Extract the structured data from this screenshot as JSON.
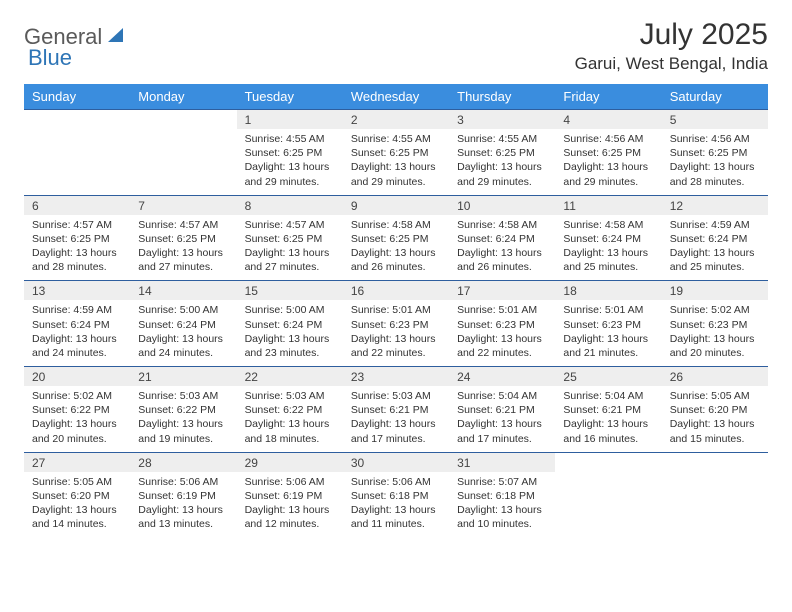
{
  "logo": {
    "text1": "General",
    "text2": "Blue",
    "color1": "#5a5a5a",
    "color2": "#2e75b6"
  },
  "title": "July 2025",
  "location": "Garui, West Bengal, India",
  "colors": {
    "header_bg": "#3a8dde",
    "header_text": "#ffffff",
    "daynum_bg": "#eeeeee",
    "row_border": "#2e5e9e",
    "page_bg": "#ffffff",
    "text": "#333333"
  },
  "columns": [
    "Sunday",
    "Monday",
    "Tuesday",
    "Wednesday",
    "Thursday",
    "Friday",
    "Saturday"
  ],
  "weeks": [
    {
      "days": [
        null,
        null,
        {
          "n": "1",
          "sunrise": "4:55 AM",
          "sunset": "6:25 PM",
          "daylight": "13 hours and 29 minutes."
        },
        {
          "n": "2",
          "sunrise": "4:55 AM",
          "sunset": "6:25 PM",
          "daylight": "13 hours and 29 minutes."
        },
        {
          "n": "3",
          "sunrise": "4:55 AM",
          "sunset": "6:25 PM",
          "daylight": "13 hours and 29 minutes."
        },
        {
          "n": "4",
          "sunrise": "4:56 AM",
          "sunset": "6:25 PM",
          "daylight": "13 hours and 29 minutes."
        },
        {
          "n": "5",
          "sunrise": "4:56 AM",
          "sunset": "6:25 PM",
          "daylight": "13 hours and 28 minutes."
        }
      ]
    },
    {
      "days": [
        {
          "n": "6",
          "sunrise": "4:57 AM",
          "sunset": "6:25 PM",
          "daylight": "13 hours and 28 minutes."
        },
        {
          "n": "7",
          "sunrise": "4:57 AM",
          "sunset": "6:25 PM",
          "daylight": "13 hours and 27 minutes."
        },
        {
          "n": "8",
          "sunrise": "4:57 AM",
          "sunset": "6:25 PM",
          "daylight": "13 hours and 27 minutes."
        },
        {
          "n": "9",
          "sunrise": "4:58 AM",
          "sunset": "6:25 PM",
          "daylight": "13 hours and 26 minutes."
        },
        {
          "n": "10",
          "sunrise": "4:58 AM",
          "sunset": "6:24 PM",
          "daylight": "13 hours and 26 minutes."
        },
        {
          "n": "11",
          "sunrise": "4:58 AM",
          "sunset": "6:24 PM",
          "daylight": "13 hours and 25 minutes."
        },
        {
          "n": "12",
          "sunrise": "4:59 AM",
          "sunset": "6:24 PM",
          "daylight": "13 hours and 25 minutes."
        }
      ]
    },
    {
      "days": [
        {
          "n": "13",
          "sunrise": "4:59 AM",
          "sunset": "6:24 PM",
          "daylight": "13 hours and 24 minutes."
        },
        {
          "n": "14",
          "sunrise": "5:00 AM",
          "sunset": "6:24 PM",
          "daylight": "13 hours and 24 minutes."
        },
        {
          "n": "15",
          "sunrise": "5:00 AM",
          "sunset": "6:24 PM",
          "daylight": "13 hours and 23 minutes."
        },
        {
          "n": "16",
          "sunrise": "5:01 AM",
          "sunset": "6:23 PM",
          "daylight": "13 hours and 22 minutes."
        },
        {
          "n": "17",
          "sunrise": "5:01 AM",
          "sunset": "6:23 PM",
          "daylight": "13 hours and 22 minutes."
        },
        {
          "n": "18",
          "sunrise": "5:01 AM",
          "sunset": "6:23 PM",
          "daylight": "13 hours and 21 minutes."
        },
        {
          "n": "19",
          "sunrise": "5:02 AM",
          "sunset": "6:23 PM",
          "daylight": "13 hours and 20 minutes."
        }
      ]
    },
    {
      "days": [
        {
          "n": "20",
          "sunrise": "5:02 AM",
          "sunset": "6:22 PM",
          "daylight": "13 hours and 20 minutes."
        },
        {
          "n": "21",
          "sunrise": "5:03 AM",
          "sunset": "6:22 PM",
          "daylight": "13 hours and 19 minutes."
        },
        {
          "n": "22",
          "sunrise": "5:03 AM",
          "sunset": "6:22 PM",
          "daylight": "13 hours and 18 minutes."
        },
        {
          "n": "23",
          "sunrise": "5:03 AM",
          "sunset": "6:21 PM",
          "daylight": "13 hours and 17 minutes."
        },
        {
          "n": "24",
          "sunrise": "5:04 AM",
          "sunset": "6:21 PM",
          "daylight": "13 hours and 17 minutes."
        },
        {
          "n": "25",
          "sunrise": "5:04 AM",
          "sunset": "6:21 PM",
          "daylight": "13 hours and 16 minutes."
        },
        {
          "n": "26",
          "sunrise": "5:05 AM",
          "sunset": "6:20 PM",
          "daylight": "13 hours and 15 minutes."
        }
      ]
    },
    {
      "days": [
        {
          "n": "27",
          "sunrise": "5:05 AM",
          "sunset": "6:20 PM",
          "daylight": "13 hours and 14 minutes."
        },
        {
          "n": "28",
          "sunrise": "5:06 AM",
          "sunset": "6:19 PM",
          "daylight": "13 hours and 13 minutes."
        },
        {
          "n": "29",
          "sunrise": "5:06 AM",
          "sunset": "6:19 PM",
          "daylight": "13 hours and 12 minutes."
        },
        {
          "n": "30",
          "sunrise": "5:06 AM",
          "sunset": "6:18 PM",
          "daylight": "13 hours and 11 minutes."
        },
        {
          "n": "31",
          "sunrise": "5:07 AM",
          "sunset": "6:18 PM",
          "daylight": "13 hours and 10 minutes."
        },
        null,
        null
      ]
    }
  ],
  "labels": {
    "sunrise": "Sunrise:",
    "sunset": "Sunset:",
    "daylight": "Daylight:"
  }
}
